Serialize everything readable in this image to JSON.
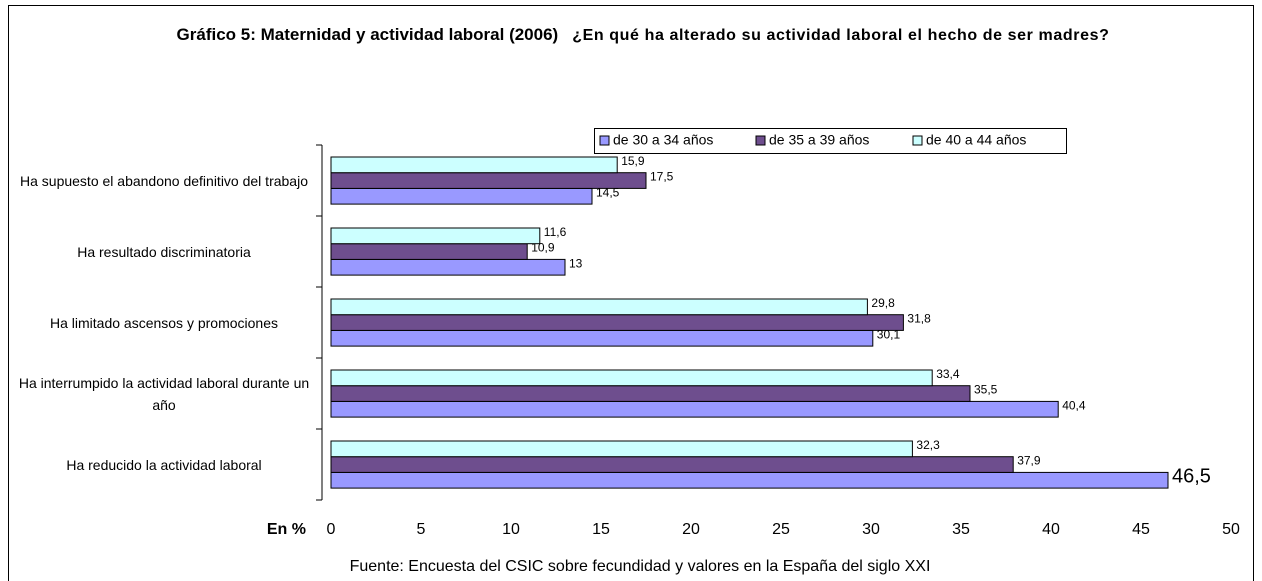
{
  "chart_data": {
    "type": "bar",
    "title": "Gráfico 5: Maternidad y actividad laboral (2006)",
    "subtitle": "¿En qué ha alterado su actividad laboral el hecho de ser madres?",
    "x_label": "En %",
    "source": "Fuente: Encuesta del CSIC sobre fecundidad y valores en la España del siglo XXI",
    "categories": [
      "Ha supuesto el abandono definitivo del trabajo",
      "Ha resultado discriminatoria",
      "Ha limitado ascensos y promociones",
      "Ha interrumpido la actividad laboral durante un año",
      "Ha reducido la actividad laboral"
    ],
    "series": [
      {
        "name": "de 30 a 34 años",
        "color": "#9999ff",
        "values": [
          14.5,
          13,
          30.1,
          40.4,
          46.5
        ],
        "value_labels": [
          "14,5",
          "13",
          "30,1",
          "40,4",
          "46,5"
        ]
      },
      {
        "name": "de 35 a 39 años",
        "color": "#6e4e8e",
        "values": [
          17.5,
          10.9,
          31.8,
          35.5,
          37.9
        ],
        "value_labels": [
          "17,5",
          "10,9",
          "31,8",
          "35,5",
          "37,9"
        ]
      },
      {
        "name": "de 40 a 44 años",
        "color": "#ccffff",
        "values": [
          15.9,
          11.6,
          29.8,
          33.4,
          32.3
        ],
        "value_labels": [
          "15,9",
          "11,6",
          "29,8",
          "33,4",
          "32,3"
        ]
      }
    ],
    "xlim": [
      0,
      50
    ],
    "xticks": [
      0,
      5,
      10,
      15,
      20,
      25,
      30,
      35,
      40,
      45,
      50
    ],
    "legend": "top"
  }
}
